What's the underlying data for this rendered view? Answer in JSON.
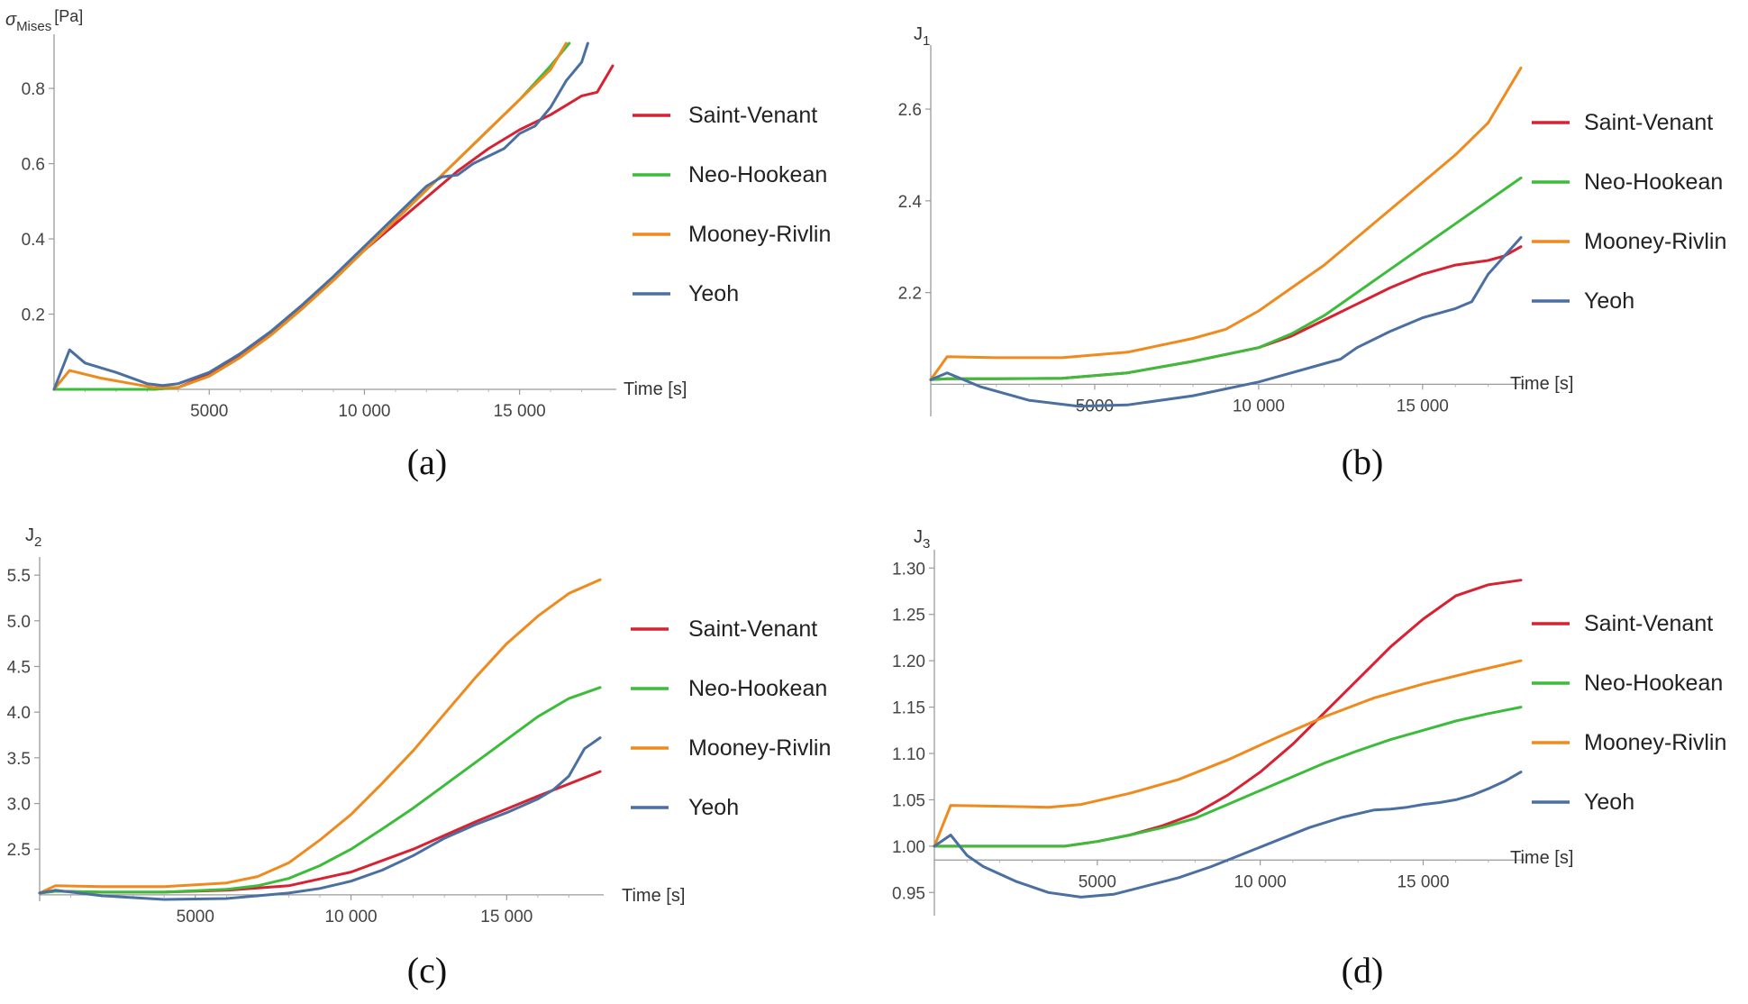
{
  "chart_data": [
    {
      "type": "line",
      "panel": "(a)",
      "caption": "(a)",
      "ylabel_main": "σ",
      "ylabel_sub": "Mises",
      "ylabel_unit": "[Pa]",
      "xlabel": "Time [s]",
      "xlim": [
        0,
        18000
      ],
      "ylim": [
        0,
        0.92
      ],
      "yorigin": 0,
      "xticks": [
        5000,
        10000,
        15000
      ],
      "xtick_labels": [
        "5000",
        "10 000",
        "15 000"
      ],
      "yticks": [
        0.2,
        0.4,
        0.6,
        0.8
      ],
      "ytick_labels": [
        "0.2",
        "0.4",
        "0.6",
        "0.8"
      ],
      "legend": [
        "Saint-Venant",
        "Neo-Hookean",
        "Mooney-Rivlin",
        "Yeoh"
      ],
      "series": [
        {
          "name": "Saint-Venant",
          "color": "#d62232",
          "x": [
            0,
            2000,
            3200,
            4000,
            5000,
            6000,
            7000,
            8000,
            9000,
            10000,
            11000,
            12000,
            13000,
            14000,
            15000,
            16000,
            17000,
            17500,
            18000
          ],
          "y": [
            0,
            0,
            0,
            0.005,
            0.04,
            0.09,
            0.15,
            0.22,
            0.29,
            0.37,
            0.44,
            0.51,
            0.58,
            0.64,
            0.69,
            0.73,
            0.78,
            0.79,
            0.86
          ]
        },
        {
          "name": "Neo-Hookean",
          "color": "#3cbc3a",
          "x": [
            0,
            2000,
            3200,
            4000,
            5000,
            6000,
            7000,
            8000,
            9000,
            10000,
            11000,
            12000,
            13000,
            14000,
            15000,
            16000,
            16600
          ],
          "y": [
            0,
            0,
            0,
            0.005,
            0.035,
            0.085,
            0.145,
            0.215,
            0.29,
            0.37,
            0.45,
            0.53,
            0.61,
            0.69,
            0.77,
            0.86,
            0.92
          ]
        },
        {
          "name": "Mooney-Rivlin",
          "color": "#ef8a1e",
          "x": [
            0,
            500,
            1500,
            2500,
            3200,
            4000,
            5000,
            6000,
            7000,
            8000,
            9000,
            10000,
            11000,
            12000,
            13000,
            14000,
            15000,
            16000,
            16500
          ],
          "y": [
            0,
            0.05,
            0.03,
            0.015,
            0.005,
            0.005,
            0.035,
            0.085,
            0.145,
            0.215,
            0.29,
            0.37,
            0.45,
            0.53,
            0.61,
            0.69,
            0.77,
            0.85,
            0.92
          ]
        },
        {
          "name": "Yeoh",
          "color": "#4a6fa0",
          "x": [
            0,
            500,
            1000,
            2000,
            3000,
            3500,
            4000,
            5000,
            6000,
            7000,
            8000,
            9000,
            10000,
            11000,
            12000,
            12500,
            13000,
            13500,
            14500,
            15000,
            15500,
            16000,
            16500,
            17000,
            17200
          ],
          "y": [
            0,
            0.105,
            0.07,
            0.045,
            0.015,
            0.01,
            0.015,
            0.045,
            0.095,
            0.155,
            0.225,
            0.3,
            0.38,
            0.46,
            0.54,
            0.565,
            0.57,
            0.6,
            0.64,
            0.68,
            0.7,
            0.75,
            0.82,
            0.87,
            0.92
          ]
        }
      ]
    },
    {
      "type": "line",
      "panel": "(b)",
      "caption": "(b)",
      "ylabel_main": "J",
      "ylabel_sub": "1",
      "ylabel_unit": "",
      "xlabel": "Time [s]",
      "xlim": [
        0,
        18000
      ],
      "ylim": [
        1.93,
        2.72
      ],
      "yorigin": 2.0,
      "xticks": [
        5000,
        10000,
        15000
      ],
      "xtick_labels": [
        "5000",
        "10 000",
        "15 000"
      ],
      "yticks": [
        2.2,
        2.4,
        2.6
      ],
      "ytick_labels": [
        "2.2",
        "2.4",
        "2.6"
      ],
      "legend": [
        "Saint-Venant",
        "Neo-Hookean",
        "Mooney-Rivlin",
        "Yeoh"
      ],
      "series": [
        {
          "name": "Saint-Venant",
          "color": "#d62232",
          "x": [
            0,
            500,
            2000,
            4000,
            6000,
            8000,
            10000,
            11000,
            12000,
            13000,
            14000,
            15000,
            16000,
            17000,
            17500,
            18000
          ],
          "y": [
            2.01,
            2.012,
            2.012,
            2.013,
            2.025,
            2.05,
            2.08,
            2.105,
            2.14,
            2.175,
            2.21,
            2.24,
            2.26,
            2.27,
            2.28,
            2.3
          ]
        },
        {
          "name": "Neo-Hookean",
          "color": "#3cbc3a",
          "x": [
            0,
            500,
            2000,
            4000,
            6000,
            8000,
            10000,
            11000,
            12000,
            13000,
            14000,
            15000,
            16000,
            17000,
            18000
          ],
          "y": [
            2.01,
            2.012,
            2.012,
            2.013,
            2.025,
            2.05,
            2.08,
            2.11,
            2.15,
            2.2,
            2.25,
            2.3,
            2.35,
            2.4,
            2.45
          ]
        },
        {
          "name": "Mooney-Rivlin",
          "color": "#ef8a1e",
          "x": [
            0,
            500,
            2000,
            4000,
            6000,
            8000,
            9000,
            10000,
            11000,
            12000,
            13000,
            14000,
            15000,
            16000,
            17000,
            18000
          ],
          "y": [
            2.01,
            2.06,
            2.058,
            2.058,
            2.07,
            2.1,
            2.12,
            2.16,
            2.21,
            2.26,
            2.32,
            2.38,
            2.44,
            2.5,
            2.57,
            2.69
          ]
        },
        {
          "name": "Yeoh",
          "color": "#4a6fa0",
          "x": [
            0,
            500,
            1500,
            3000,
            4500,
            6000,
            8000,
            10000,
            11000,
            12000,
            12500,
            13000,
            14000,
            15000,
            16000,
            16500,
            17000,
            17500,
            18000
          ],
          "y": [
            2.01,
            2.025,
            1.995,
            1.965,
            1.952,
            1.955,
            1.975,
            2.005,
            2.025,
            2.045,
            2.055,
            2.08,
            2.115,
            2.145,
            2.165,
            2.18,
            2.24,
            2.28,
            2.32
          ]
        }
      ]
    },
    {
      "type": "line",
      "panel": "(c)",
      "caption": "(c)",
      "ylabel_main": "J",
      "ylabel_sub": "2",
      "ylabel_unit": "",
      "xlabel": "Time [s]",
      "xlim": [
        0,
        18000
      ],
      "ylim": [
        1.93,
        5.6
      ],
      "yorigin": 2.0,
      "xticks": [
        5000,
        10000,
        15000
      ],
      "xtick_labels": [
        "5000",
        "10 000",
        "15 000"
      ],
      "yticks": [
        2.5,
        3.0,
        3.5,
        4.0,
        4.5,
        5.0,
        5.5
      ],
      "ytick_labels": [
        "2.5",
        "3.0",
        "3.5",
        "4.0",
        "4.5",
        "5.0",
        "5.5"
      ],
      "legend": [
        "Saint-Venant",
        "Neo-Hookean",
        "Mooney-Rivlin",
        "Yeoh"
      ],
      "series": [
        {
          "name": "Saint-Venant",
          "color": "#d62232",
          "x": [
            0,
            500,
            2000,
            4000,
            6000,
            8000,
            10000,
            12000,
            14000,
            16000,
            18000
          ],
          "y": [
            2.02,
            2.04,
            2.03,
            2.03,
            2.05,
            2.1,
            2.25,
            2.5,
            2.8,
            3.08,
            3.35
          ]
        },
        {
          "name": "Neo-Hookean",
          "color": "#3cbc3a",
          "x": [
            0,
            500,
            2000,
            4000,
            6000,
            7000,
            8000,
            9000,
            10000,
            11000,
            12000,
            13000,
            14000,
            15000,
            16000,
            17000,
            18000
          ],
          "y": [
            2.02,
            2.04,
            2.03,
            2.03,
            2.06,
            2.1,
            2.18,
            2.32,
            2.5,
            2.72,
            2.95,
            3.2,
            3.45,
            3.7,
            3.95,
            4.15,
            4.27
          ]
        },
        {
          "name": "Mooney-Rivlin",
          "color": "#ef8a1e",
          "x": [
            0,
            500,
            2000,
            4000,
            6000,
            7000,
            8000,
            9000,
            10000,
            11000,
            12000,
            13000,
            14000,
            15000,
            16000,
            17000,
            18000
          ],
          "y": [
            2.02,
            2.1,
            2.09,
            2.09,
            2.13,
            2.2,
            2.35,
            2.6,
            2.88,
            3.22,
            3.58,
            3.98,
            4.38,
            4.75,
            5.05,
            5.3,
            5.45
          ]
        },
        {
          "name": "Yeoh",
          "color": "#4a6fa0",
          "x": [
            0,
            500,
            2000,
            4000,
            6000,
            8000,
            9000,
            10000,
            11000,
            12000,
            13000,
            14000,
            15000,
            16000,
            16500,
            17000,
            17500,
            18000
          ],
          "y": [
            2.02,
            2.05,
            1.99,
            1.95,
            1.96,
            2.02,
            2.07,
            2.15,
            2.27,
            2.43,
            2.62,
            2.77,
            2.9,
            3.05,
            3.15,
            3.3,
            3.6,
            3.72
          ]
        }
      ]
    },
    {
      "type": "line",
      "panel": "(d)",
      "caption": "(d)",
      "ylabel_main": "J",
      "ylabel_sub": "3",
      "ylabel_unit": "",
      "xlabel": "Time [s]",
      "xlim": [
        0,
        18000
      ],
      "ylim": [
        0.925,
        1.31
      ],
      "yorigin": 0.985,
      "xticks": [
        5000,
        10000,
        15000
      ],
      "xtick_labels": [
        "5000",
        "10 000",
        "15 000"
      ],
      "yticks": [
        0.95,
        1.0,
        1.05,
        1.1,
        1.15,
        1.2,
        1.25,
        1.3
      ],
      "ytick_labels": [
        "0.95",
        "1.00",
        "1.05",
        "1.10",
        "1.15",
        "1.20",
        "1.25",
        "1.30"
      ],
      "legend": [
        "Saint-Venant",
        "Neo-Hookean",
        "Mooney-Rivlin",
        "Yeoh"
      ],
      "series": [
        {
          "name": "Saint-Venant",
          "color": "#d62232",
          "x": [
            0,
            500,
            2000,
            4000,
            5000,
            6000,
            7000,
            8000,
            9000,
            10000,
            11000,
            12000,
            13000,
            14000,
            15000,
            16000,
            17000,
            18000
          ],
          "y": [
            1.0,
            1.0,
            1.0,
            1.0,
            1.005,
            1.012,
            1.022,
            1.035,
            1.055,
            1.08,
            1.11,
            1.145,
            1.18,
            1.215,
            1.245,
            1.27,
            1.282,
            1.287
          ]
        },
        {
          "name": "Neo-Hookean",
          "color": "#3cbc3a",
          "x": [
            0,
            500,
            2000,
            4000,
            5000,
            6000,
            7000,
            8000,
            9000,
            10000,
            11000,
            12000,
            13000,
            14000,
            15000,
            16000,
            17000,
            18000
          ],
          "y": [
            1.0,
            1.0,
            1.0,
            1.0,
            1.005,
            1.012,
            1.02,
            1.03,
            1.045,
            1.06,
            1.075,
            1.09,
            1.103,
            1.115,
            1.125,
            1.135,
            1.143,
            1.15
          ]
        },
        {
          "name": "Mooney-Rivlin",
          "color": "#ef8a1e",
          "x": [
            0,
            500,
            2000,
            3500,
            4500,
            6000,
            7500,
            9000,
            10500,
            12000,
            13500,
            15000,
            16500,
            18000
          ],
          "y": [
            1.0,
            1.044,
            1.043,
            1.042,
            1.045,
            1.057,
            1.072,
            1.093,
            1.117,
            1.14,
            1.16,
            1.175,
            1.188,
            1.2
          ]
        },
        {
          "name": "Yeoh",
          "color": "#4a6fa0",
          "x": [
            0,
            500,
            1000,
            1500,
            2500,
            3500,
            4500,
            5500,
            6500,
            7500,
            8500,
            9500,
            10500,
            11500,
            12500,
            13500,
            14000,
            14500,
            15000,
            15500,
            16000,
            16500,
            17000,
            17500,
            18000
          ],
          "y": [
            1.0,
            1.012,
            0.99,
            0.978,
            0.962,
            0.95,
            0.945,
            0.948,
            0.957,
            0.966,
            0.978,
            0.992,
            1.006,
            1.02,
            1.031,
            1.039,
            1.04,
            1.042,
            1.045,
            1.047,
            1.05,
            1.055,
            1.062,
            1.07,
            1.08
          ]
        }
      ]
    }
  ]
}
